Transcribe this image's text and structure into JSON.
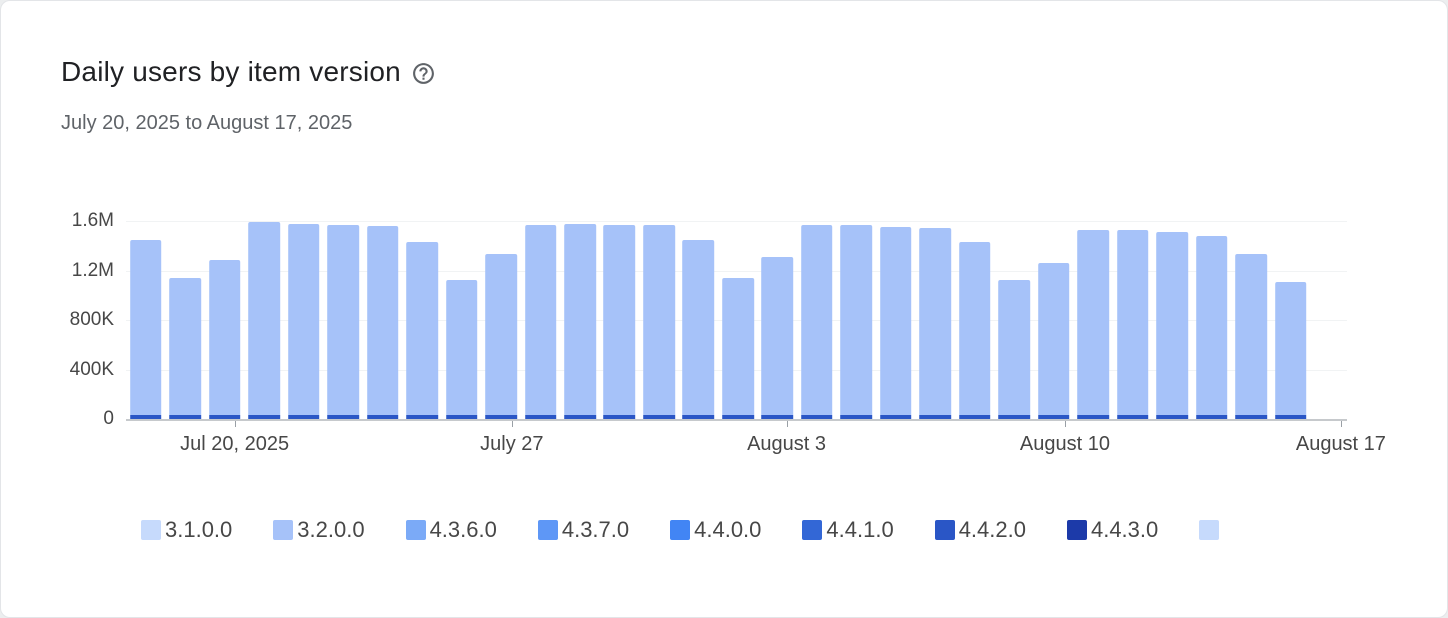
{
  "chart_data": {
    "type": "stacked-bar",
    "title": "Daily users by item version",
    "subtitle": "July 20, 2025 to August 17, 2025",
    "ylim": [
      0,
      1600000
    ],
    "grid": true,
    "legend_position": "bottom",
    "yticks": [
      {
        "label": "1.6M",
        "value": 1600000
      },
      {
        "label": "1.2M",
        "value": 1200000
      },
      {
        "label": "800K",
        "value": 800000
      },
      {
        "label": "400K",
        "value": 400000
      },
      {
        "label": "0",
        "value": 0
      }
    ],
    "xticks": [
      {
        "label": "Jul 20, 2025",
        "pos_pct": 8.9
      },
      {
        "label": "July 27",
        "pos_pct": 31.6
      },
      {
        "label": "August 3",
        "pos_pct": 54.1
      },
      {
        "label": "August 10",
        "pos_pct": 76.9
      },
      {
        "label": "August 17",
        "pos_pct": 99.5
      }
    ],
    "legend": [
      {
        "label": "3.1.0.0",
        "color": "#c6dafc"
      },
      {
        "label": "3.2.0.0",
        "color": "#a6c2f9"
      },
      {
        "label": "4.3.6.0",
        "color": "#7baaf7"
      },
      {
        "label": "4.3.7.0",
        "color": "#5e97f6"
      },
      {
        "label": "4.4.0.0",
        "color": "#4285f4"
      },
      {
        "label": "4.4.1.0",
        "color": "#3367d6"
      },
      {
        "label": "4.4.2.0",
        "color": "#2a56c6"
      },
      {
        "label": "4.4.3.0",
        "color": "#1c3aa9"
      },
      {
        "label": "",
        "color": "#c6dafc"
      }
    ],
    "bars": {
      "area_pct": 97,
      "main_color": "#a6c2f9",
      "base_color": "#2a56c6",
      "base_value": 30000,
      "totals": [
        1450000,
        1140000,
        1285000,
        1590000,
        1575000,
        1570000,
        1560000,
        1430000,
        1120000,
        1330000,
        1570000,
        1575000,
        1570000,
        1570000,
        1450000,
        1140000,
        1310000,
        1570000,
        1570000,
        1555000,
        1540000,
        1430000,
        1120000,
        1260000,
        1530000,
        1525000,
        1510000,
        1480000,
        1330000,
        1105000
      ]
    }
  },
  "icons": {
    "help_icon": "circled-question-mark"
  }
}
